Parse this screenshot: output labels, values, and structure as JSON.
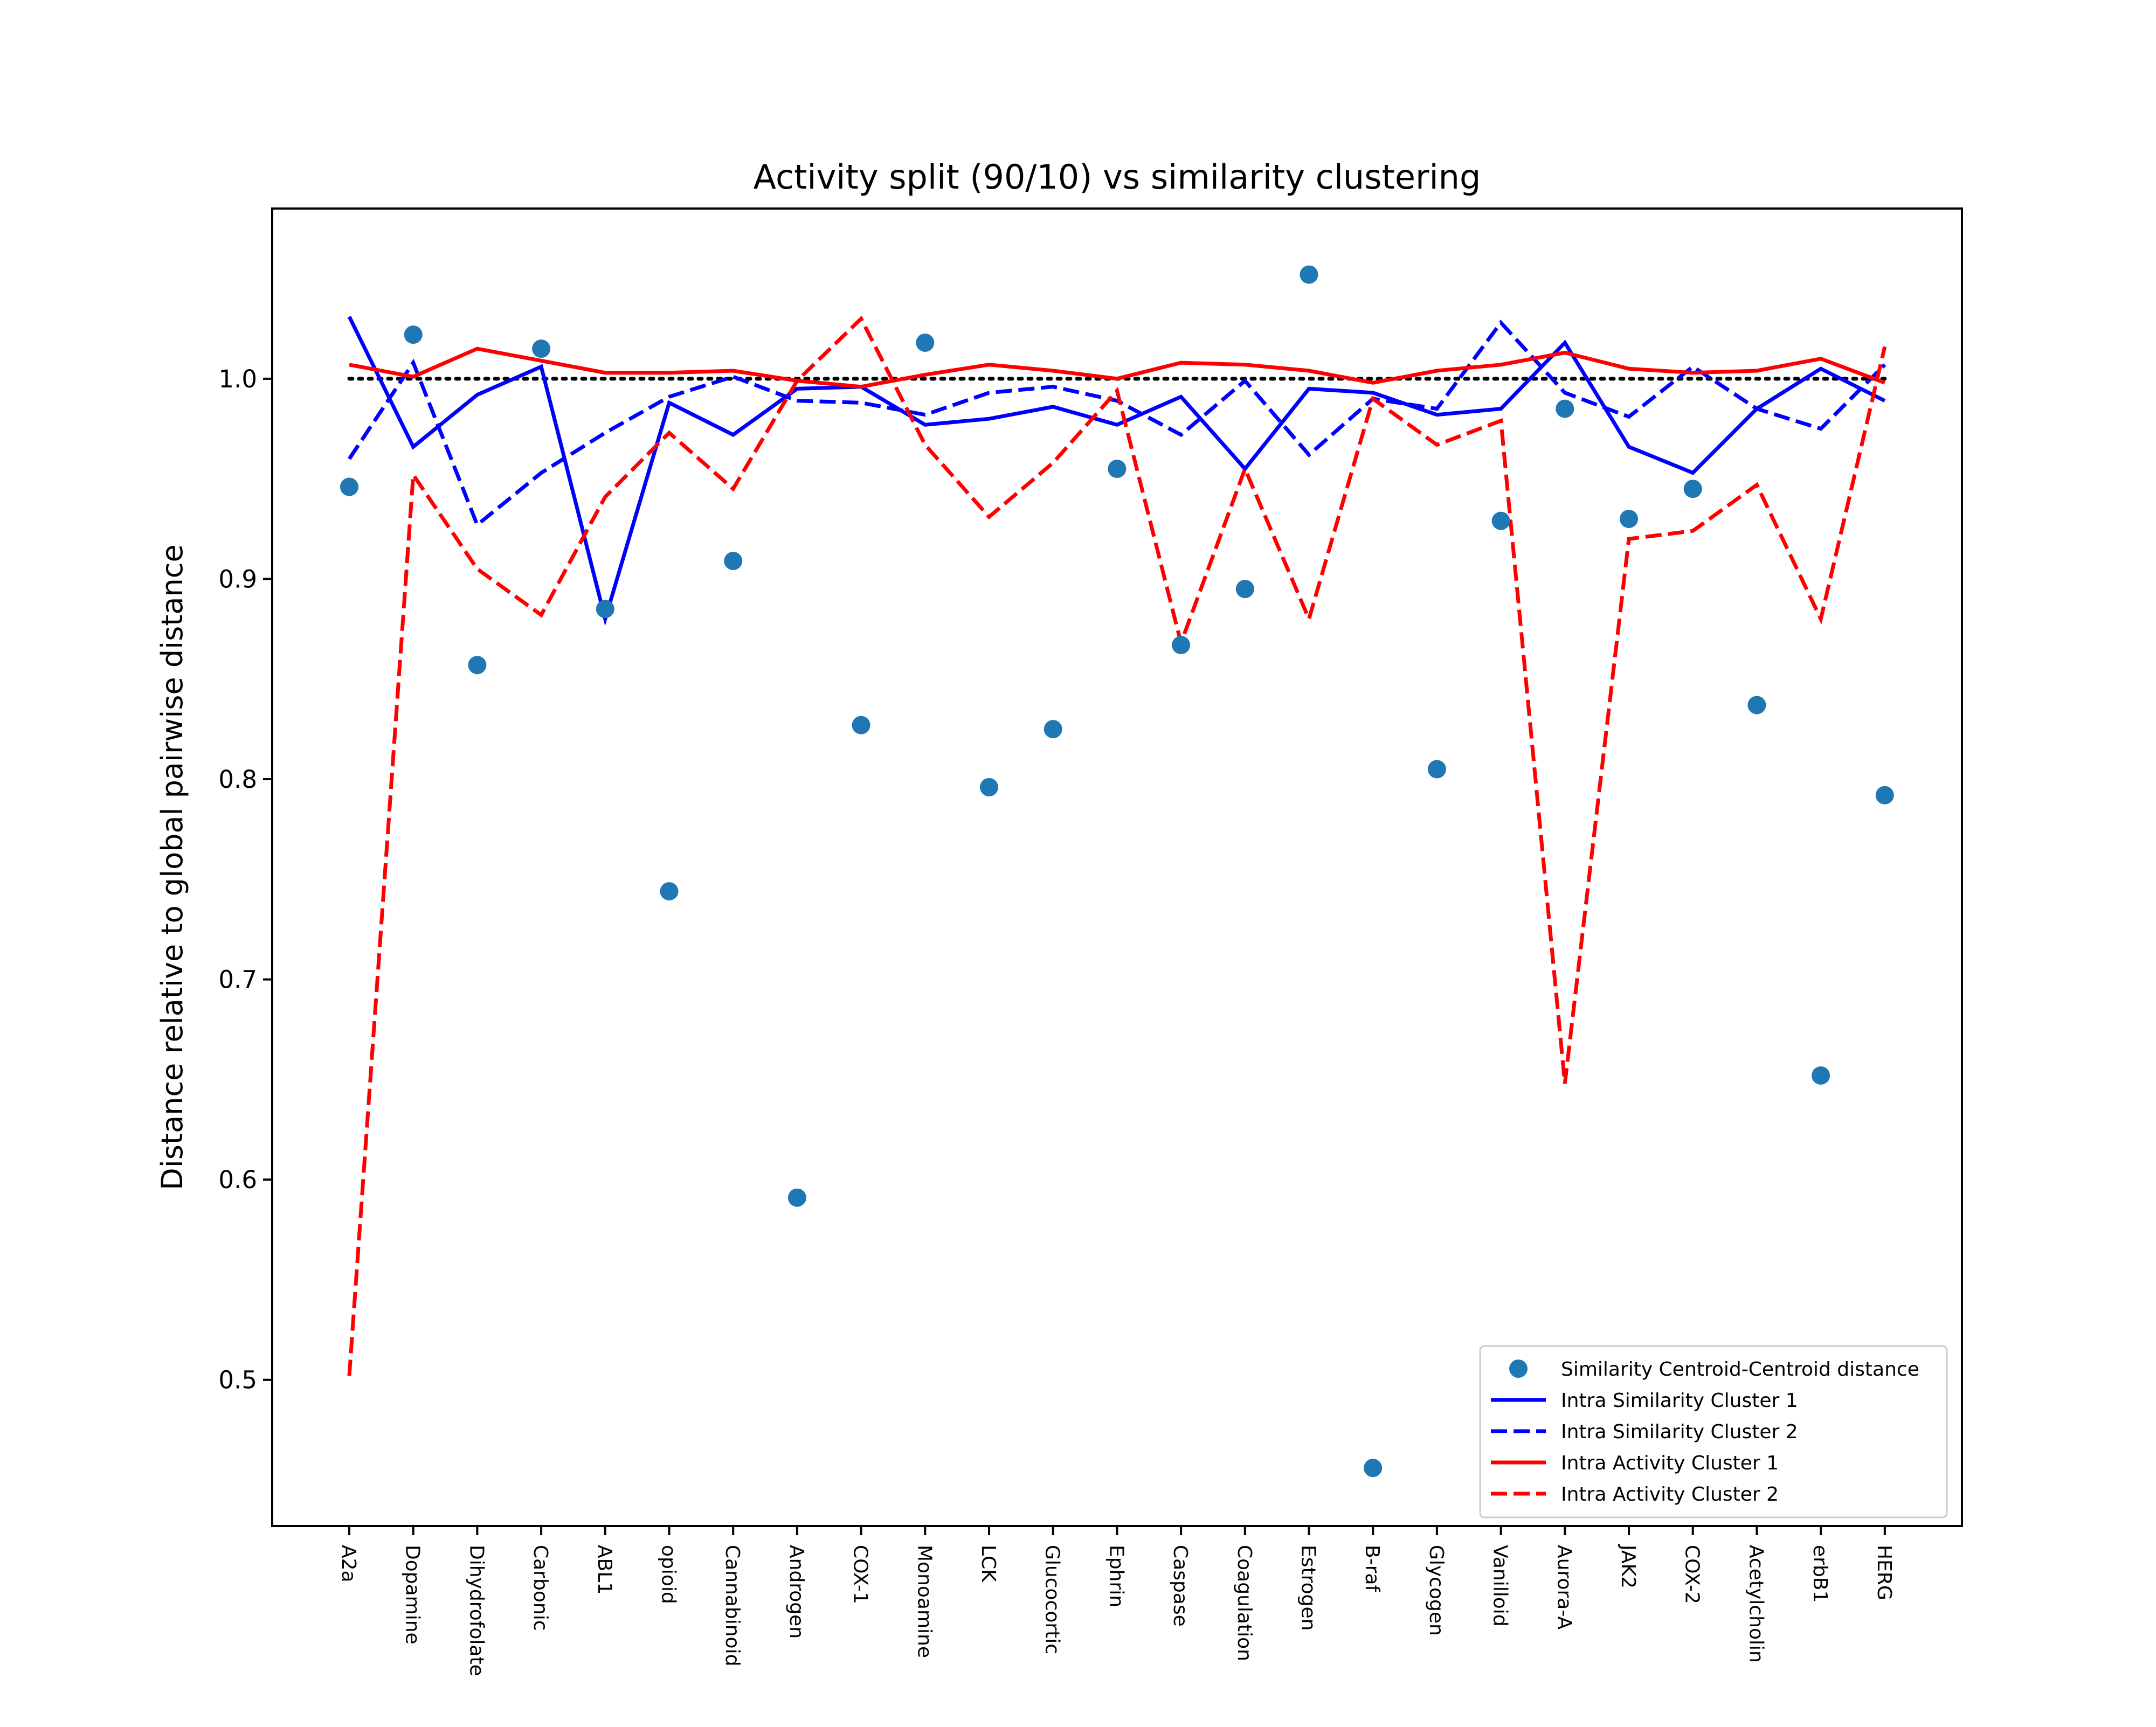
{
  "chart_data": {
    "type": "line",
    "title": "Activity split (90/10) vs similarity clustering",
    "xlabel": "",
    "ylabel": "Distance relative to global pairwise distance",
    "ylim": [
      0.427,
      1.085
    ],
    "yticks": [
      0.5,
      0.6,
      0.7,
      0.8,
      0.9,
      1.0
    ],
    "ytick_labels": [
      "0.5",
      "0.6",
      "0.7",
      "0.8",
      "0.9",
      "1.0"
    ],
    "grid": false,
    "legend_position": "lower right",
    "reference_line": {
      "y": 1.0,
      "style": "dotted",
      "color": "#000000"
    },
    "categories": [
      "A2a",
      "Dopamine",
      "Dihydrofolate",
      "Carbonic",
      "ABL1",
      "opioid",
      "Cannabinoid",
      "Androgen",
      "COX-1",
      "Monoamine",
      "LCK",
      "Glucocortic",
      "Ephrin",
      "Caspase",
      "Coagulation",
      "Estrogen",
      "B-raf",
      "Glycogen",
      "Vanilloid",
      "Aurora-A",
      "JAK2",
      "COX-2",
      "Acetylcholin",
      "erbB1",
      "HERG"
    ],
    "series": [
      {
        "name": "Similarity Centroid-Centroid distance",
        "kind": "scatter",
        "color": "#1f77b4",
        "dash": "none",
        "values": [
          0.946,
          1.022,
          0.857,
          1.015,
          0.885,
          0.744,
          0.909,
          0.591,
          0.827,
          1.018,
          0.796,
          0.825,
          0.955,
          0.867,
          0.895,
          1.052,
          0.456,
          0.805,
          0.929,
          0.985,
          0.93,
          0.945,
          0.837,
          0.652,
          0.792
        ]
      },
      {
        "name": "Intra Similarity Cluster 1",
        "kind": "line",
        "color": "#0000ff",
        "dash": "solid",
        "values": [
          1.031,
          0.966,
          0.992,
          1.006,
          0.88,
          0.988,
          0.972,
          0.995,
          0.996,
          0.977,
          0.98,
          0.986,
          0.977,
          0.991,
          0.955,
          0.995,
          0.993,
          0.982,
          0.985,
          1.018,
          0.966,
          0.953,
          0.985,
          1.005,
          0.989
        ]
      },
      {
        "name": "Intra Similarity Cluster 2",
        "kind": "line",
        "color": "#0000ff",
        "dash": "dashed",
        "values": [
          0.96,
          1.008,
          0.927,
          0.953,
          0.973,
          0.991,
          1.001,
          0.989,
          0.988,
          0.982,
          0.993,
          0.996,
          0.989,
          0.972,
          0.999,
          0.962,
          0.99,
          0.985,
          1.028,
          0.993,
          0.981,
          1.006,
          0.985,
          0.975,
          1.007
        ]
      },
      {
        "name": "Intra Activity Cluster 1",
        "kind": "line",
        "color": "#ff0000",
        "dash": "solid",
        "values": [
          1.007,
          1.001,
          1.015,
          1.009,
          1.003,
          1.003,
          1.004,
          0.999,
          0.996,
          1.002,
          1.007,
          1.004,
          1.0,
          1.008,
          1.007,
          1.004,
          0.998,
          1.004,
          1.007,
          1.013,
          1.005,
          1.003,
          1.004,
          1.01,
          0.998
        ]
      },
      {
        "name": "Intra Activity Cluster 2",
        "kind": "line",
        "color": "#ff0000",
        "dash": "dashed",
        "values": [
          0.502,
          0.952,
          0.905,
          0.882,
          0.941,
          0.973,
          0.945,
          0.999,
          1.03,
          0.967,
          0.931,
          0.958,
          0.994,
          0.868,
          0.955,
          0.88,
          0.99,
          0.967,
          0.979,
          0.648,
          0.92,
          0.924,
          0.947,
          0.88,
          1.016
        ]
      }
    ]
  }
}
